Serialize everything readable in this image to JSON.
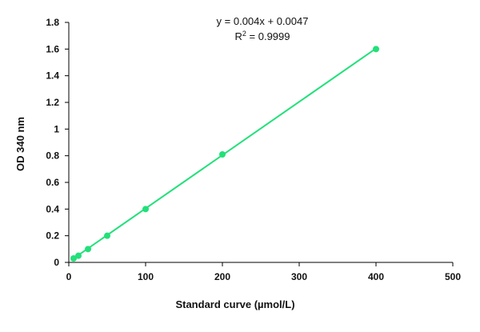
{
  "chart_data": {
    "type": "scatter",
    "title": "",
    "xlabel": "Standard curve (µmol/L)",
    "ylabel": "OD 340 nm",
    "xlim": [
      0,
      500
    ],
    "ylim": [
      0,
      1.8
    ],
    "x_ticks": [
      "0",
      "100",
      "200",
      "300",
      "400",
      "500"
    ],
    "y_ticks": [
      "0",
      "0.2",
      "0.4",
      "0.6",
      "0.8",
      "1",
      "1.2",
      "1.4",
      "1.6",
      "1.8"
    ],
    "grid": false,
    "legend": "none",
    "series": [
      {
        "color": "#22e07a",
        "marker": "circle",
        "trendline": "linear",
        "x": [
          6.25,
          12.5,
          25,
          50,
          100,
          200,
          400
        ],
        "y": [
          0.03,
          0.05,
          0.1,
          0.2,
          0.4,
          0.81,
          1.6
        ]
      }
    ],
    "annotations": {
      "equation": "y = 0.004x + 0.0047",
      "r2_prefix": "R",
      "r2_sup": "2",
      "r2_value": " = 0.9999"
    },
    "fit": {
      "slope": 0.004,
      "intercept": 0.0047
    }
  }
}
